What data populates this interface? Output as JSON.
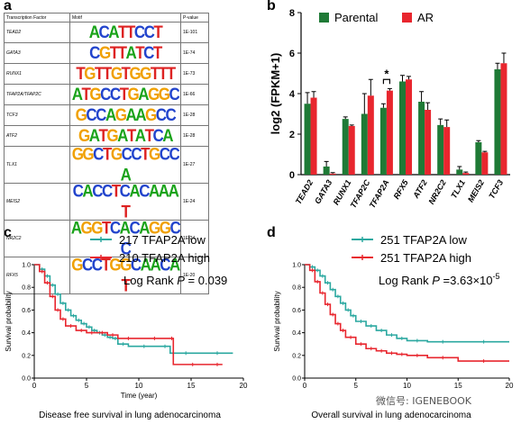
{
  "panels": {
    "a": "a",
    "b": "b",
    "c": "c",
    "d": "d"
  },
  "table": {
    "headers": [
      "Transcription Factor",
      "Motif",
      "P-value"
    ],
    "rows": [
      {
        "factor": "TEAD2",
        "motif": "ACATTCCT",
        "pvalue": "1E-101"
      },
      {
        "factor": "GATA3",
        "motif": "CGTTATCT",
        "pvalue": "1E-74"
      },
      {
        "factor": "RUNX1",
        "motif": "TGTTGTGGTTT",
        "pvalue": "1E-73"
      },
      {
        "factor": "TFAP2A/TFAP2C",
        "motif": "ATGCCTGAGGC",
        "pvalue": "1E-66"
      },
      {
        "factor": "TCF3",
        "motif": "GCCAGAAGCC",
        "pvalue": "1E-28"
      },
      {
        "factor": "ATF2",
        "motif": "GATGATATCA",
        "pvalue": "1E-28"
      },
      {
        "factor": "TLX1",
        "motif": "GGCTGCCTGCCA",
        "pvalue": "1E-27"
      },
      {
        "factor": "MEIS2",
        "motif": "CACCTCACAAAT",
        "pvalue": "1E-24"
      },
      {
        "factor": "NR2C2",
        "motif": "AGGTCACAGGCC",
        "pvalue": "1E-24"
      },
      {
        "factor": "RFX5",
        "motif": "GCCTGGCAACAT",
        "pvalue": "1E-20"
      }
    ]
  },
  "chart_data": [
    {
      "type": "bar",
      "ylabel": "log2 (FPKM+1)",
      "ylim": [
        0,
        8
      ],
      "yticks": [
        0,
        2,
        4,
        6,
        8
      ],
      "categories": [
        "TEAD2",
        "GATA3",
        "RUNX1",
        "TFAP2C",
        "TFAP2A",
        "RFX5",
        "ATF2",
        "NR2C2",
        "TLX1",
        "MEIS2",
        "TCF3"
      ],
      "series": [
        {
          "name": "Parental",
          "color": "#1f7a36",
          "values": [
            3.5,
            0.4,
            2.75,
            3.0,
            3.3,
            4.6,
            3.6,
            2.45,
            0.25,
            1.6,
            5.2
          ],
          "errors": [
            0.55,
            0.25,
            0.1,
            1.0,
            0.2,
            0.3,
            0.5,
            0.3,
            0.15,
            0.08,
            0.3
          ]
        },
        {
          "name": "AR",
          "color": "#e8262e",
          "values": [
            3.8,
            0.05,
            2.4,
            3.9,
            4.15,
            4.7,
            3.2,
            2.35,
            0.08,
            1.1,
            5.5
          ],
          "errors": [
            0.3,
            0.05,
            0.05,
            0.8,
            0.1,
            0.15,
            0.35,
            0.35,
            0.05,
            0.05,
            0.5
          ]
        }
      ],
      "legend": "top",
      "annotation": "*"
    },
    {
      "type": "line",
      "title": "Disease free survival in lung adenocarcinoma",
      "xlabel": "Time (year)",
      "ylabel": "Survival probability",
      "xlim": [
        0,
        20
      ],
      "xticks": [
        0,
        5,
        10,
        15,
        20
      ],
      "ylim": [
        0,
        1
      ],
      "yticks": [
        0.0,
        0.2,
        0.4,
        0.6,
        0.8,
        1.0
      ],
      "stat": {
        "prefix": "Log Rank ",
        "symbol": "P",
        "value": " = 0.039"
      },
      "series": [
        {
          "name": "217 TFAP2A low",
          "color": "#2ba8a0",
          "x": [
            0,
            0.5,
            1,
            1.5,
            2,
            2.5,
            3,
            3.5,
            4,
            4.5,
            5,
            5.5,
            6,
            6.5,
            7,
            7.5,
            8,
            9,
            12,
            13,
            16,
            19
          ],
          "y": [
            1.0,
            0.96,
            0.9,
            0.82,
            0.74,
            0.66,
            0.6,
            0.55,
            0.51,
            0.48,
            0.45,
            0.42,
            0.4,
            0.38,
            0.36,
            0.35,
            0.3,
            0.28,
            0.28,
            0.22,
            0.22,
            0.22
          ]
        },
        {
          "name": "210 TFAP2A high",
          "color": "#e8262e",
          "x": [
            0,
            0.5,
            1,
            1.5,
            2,
            2.5,
            3,
            4,
            5,
            6,
            7,
            8,
            10,
            13,
            13.3,
            17,
            18
          ],
          "y": [
            1.0,
            0.94,
            0.84,
            0.72,
            0.6,
            0.52,
            0.46,
            0.42,
            0.4,
            0.4,
            0.38,
            0.35,
            0.35,
            0.35,
            0.12,
            0.12,
            0.12
          ]
        }
      ]
    },
    {
      "type": "line",
      "title": "Overall survival in lung adenocarcinoma",
      "xlabel": "",
      "ylabel": "Survival probability",
      "xlim": [
        0,
        20
      ],
      "xticks": [
        0,
        5,
        10,
        15,
        20
      ],
      "ylim": [
        0,
        1
      ],
      "yticks": [
        0.0,
        0.2,
        0.4,
        0.6,
        0.8,
        1.0
      ],
      "stat": {
        "prefix": "Log Rank ",
        "symbol": "P",
        "value": " =3.63×10",
        "exponent": "-5"
      },
      "series": [
        {
          "name": "251 TFAP2A low",
          "color": "#2ba8a0",
          "x": [
            0,
            0.5,
            1,
            1.5,
            2,
            2.5,
            3,
            3.5,
            4,
            4.5,
            5,
            6,
            7,
            8,
            9,
            10,
            12,
            15,
            20
          ],
          "y": [
            1.0,
            0.98,
            0.95,
            0.9,
            0.84,
            0.78,
            0.72,
            0.66,
            0.6,
            0.55,
            0.5,
            0.46,
            0.42,
            0.38,
            0.35,
            0.33,
            0.32,
            0.32,
            0.32
          ]
        },
        {
          "name": "251 TFAP2A high",
          "color": "#e8262e",
          "x": [
            0,
            0.5,
            1,
            1.5,
            2,
            2.5,
            3,
            3.5,
            4,
            5,
            6,
            7,
            8,
            9,
            10,
            12,
            15,
            20
          ],
          "y": [
            1.0,
            0.95,
            0.85,
            0.75,
            0.65,
            0.56,
            0.48,
            0.42,
            0.36,
            0.3,
            0.26,
            0.24,
            0.22,
            0.21,
            0.2,
            0.18,
            0.15,
            0.15
          ]
        }
      ]
    }
  ],
  "xlabel_bottom_c": "Disease free survival in lung adenocarcinoma",
  "xlabel_bottom_d": "Overall survival in lung adenocarcinoma",
  "watermark": "微信号: IGENEBOOK"
}
